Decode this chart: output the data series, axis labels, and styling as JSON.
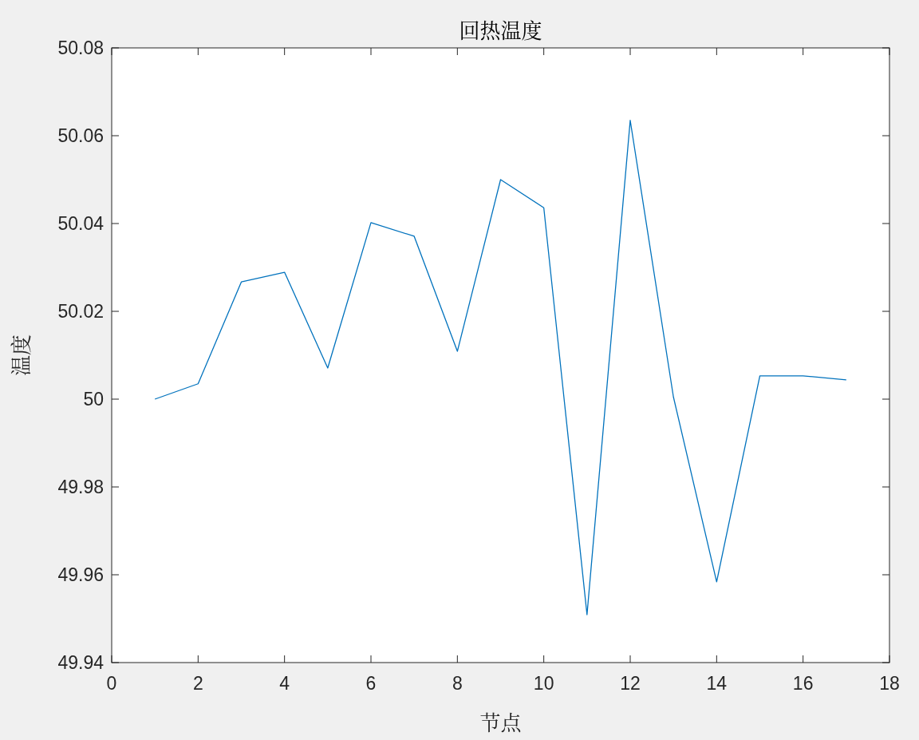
{
  "chart_data": {
    "type": "line",
    "title": "回热温度",
    "xlabel": "节点",
    "ylabel": "温度",
    "x": [
      1,
      2,
      3,
      4,
      5,
      6,
      7,
      8,
      9,
      10,
      11,
      12,
      13,
      14,
      15,
      16,
      17
    ],
    "series": [
      {
        "color": "#0072bd",
        "values": [
          50.0,
          50.0035,
          50.0267,
          50.0289,
          50.0071,
          50.0402,
          50.0371,
          50.0109,
          50.05,
          50.0436,
          49.9509,
          50.0635,
          50.0005,
          49.9584,
          50.0053,
          50.0053,
          50.0044
        ]
      }
    ],
    "xlim": [
      0,
      18
    ],
    "xticks": [
      0,
      2,
      4,
      6,
      8,
      10,
      12,
      14,
      16,
      18
    ],
    "ylim": [
      49.94,
      50.08
    ],
    "yticks": [
      {
        "value": 49.94,
        "label": "49.94"
      },
      {
        "value": 49.96,
        "label": "49.96"
      },
      {
        "value": 49.98,
        "label": "49.98"
      },
      {
        "value": 50,
        "label": "50"
      },
      {
        "value": 50.02,
        "label": "50.02"
      },
      {
        "value": 50.04,
        "label": "50.04"
      },
      {
        "value": 50.06,
        "label": "50.06"
      },
      {
        "value": 50.08,
        "label": "50.08"
      }
    ],
    "grid": false,
    "marker": "none",
    "line_style": "solid"
  }
}
